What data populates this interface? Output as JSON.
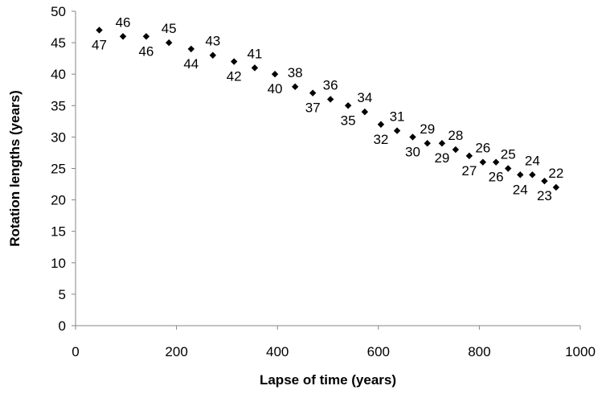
{
  "chart_data": {
    "type": "scatter",
    "title": "",
    "xlabel": "Lapse of time (years)",
    "ylabel": "Rotation lengths (years)",
    "xlim": [
      0,
      1000
    ],
    "ylim": [
      0,
      50
    ],
    "xticks": [
      "0",
      "200",
      "400",
      "600",
      "800",
      "1000"
    ],
    "yticks": [
      "0",
      "5",
      "10",
      "15",
      "20",
      "25",
      "30",
      "35",
      "40",
      "45",
      "50"
    ],
    "grid": false,
    "marker": "diamond",
    "marker_color": "#000000",
    "points": [
      {
        "x": 47,
        "y": 47,
        "label": "47"
      },
      {
        "x": 94,
        "y": 46,
        "label": "46"
      },
      {
        "x": 140,
        "y": 46,
        "label": "46"
      },
      {
        "x": 185,
        "y": 45,
        "label": "45"
      },
      {
        "x": 229,
        "y": 44,
        "label": "44"
      },
      {
        "x": 272,
        "y": 43,
        "label": "43"
      },
      {
        "x": 314,
        "y": 42,
        "label": "42"
      },
      {
        "x": 355,
        "y": 41,
        "label": "41"
      },
      {
        "x": 395,
        "y": 40,
        "label": "40"
      },
      {
        "x": 435,
        "y": 38,
        "label": "38"
      },
      {
        "x": 470,
        "y": 37,
        "label": "37"
      },
      {
        "x": 505,
        "y": 36,
        "label": "36"
      },
      {
        "x": 540,
        "y": 35,
        "label": "35"
      },
      {
        "x": 573,
        "y": 34,
        "label": "34"
      },
      {
        "x": 605,
        "y": 32,
        "label": "32"
      },
      {
        "x": 637,
        "y": 31,
        "label": "31"
      },
      {
        "x": 668,
        "y": 30,
        "label": "30"
      },
      {
        "x": 697,
        "y": 29,
        "label": "29"
      },
      {
        "x": 726,
        "y": 29,
        "label": "29"
      },
      {
        "x": 753,
        "y": 28,
        "label": "28"
      },
      {
        "x": 780,
        "y": 27,
        "label": "27"
      },
      {
        "x": 807,
        "y": 26,
        "label": "26"
      },
      {
        "x": 833,
        "y": 26,
        "label": "26"
      },
      {
        "x": 857,
        "y": 25,
        "label": "25"
      },
      {
        "x": 881,
        "y": 24,
        "label": "24"
      },
      {
        "x": 905,
        "y": 24,
        "label": "24"
      },
      {
        "x": 929,
        "y": 23,
        "label": "23"
      },
      {
        "x": 952,
        "y": 22,
        "label": "22"
      }
    ]
  }
}
